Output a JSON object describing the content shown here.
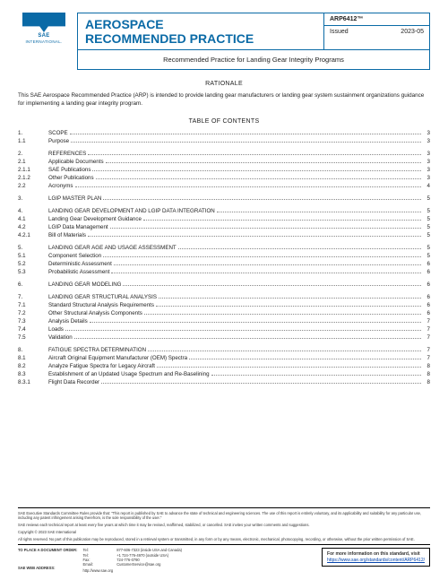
{
  "brand": {
    "name": "SAE",
    "sub": "INTERNATIONAL."
  },
  "header": {
    "title_line1": "AEROSPACE",
    "title_line2": "RECOMMENDED PRACTICE",
    "doc_number": "ARP6412™",
    "issued_label": "Issued",
    "issued_date": "2023-05",
    "subtitle": "Recommended Practice for Landing Gear Integrity Programs"
  },
  "rationale_h": "RATIONALE",
  "rationale_body": "This SAE Aerospace Recommended Practice (ARP) is intended to provide landing gear manufacturers or landing gear system sustainment organizations guidance for implementing a landing gear integrity program.",
  "toc_h": "TABLE OF CONTENTS",
  "toc": [
    {
      "n": "1.",
      "t": "SCOPE",
      "p": "3"
    },
    {
      "n": "1.1",
      "t": "Purpose",
      "p": "3"
    },
    {
      "gap": true
    },
    {
      "n": "2.",
      "t": "REFERENCES",
      "p": "3"
    },
    {
      "n": "2.1",
      "t": "Applicable Documents",
      "p": "3"
    },
    {
      "n": "2.1.1",
      "t": "SAE Publications",
      "p": "3"
    },
    {
      "n": "2.1.2",
      "t": "Other Publications",
      "p": "3"
    },
    {
      "n": "2.2",
      "t": "Acronyms",
      "p": "4"
    },
    {
      "gap": true
    },
    {
      "n": "3.",
      "t": "LGIP MASTER PLAN",
      "p": "5"
    },
    {
      "gap": true
    },
    {
      "n": "4.",
      "t": "LANDING GEAR DEVELOPMENT AND LGIP DATA INTEGRATION",
      "p": "5"
    },
    {
      "n": "4.1",
      "t": "Landing Gear Development Guidance",
      "p": "5"
    },
    {
      "n": "4.2",
      "t": "LGIP Data Management",
      "p": "5"
    },
    {
      "n": "4.2.1",
      "t": "Bill of Materials",
      "p": "5"
    },
    {
      "gap": true
    },
    {
      "n": "5.",
      "t": "LANDING GEAR AGE AND USAGE ASSESSMENT",
      "p": "5"
    },
    {
      "n": "5.1",
      "t": "Component Selection",
      "p": "5"
    },
    {
      "n": "5.2",
      "t": "Deterministic Assessment",
      "p": "6"
    },
    {
      "n": "5.3",
      "t": "Probabilistic Assessment",
      "p": "6"
    },
    {
      "gap": true
    },
    {
      "n": "6.",
      "t": "LANDING GEAR MODELING",
      "p": "6"
    },
    {
      "gap": true
    },
    {
      "n": "7.",
      "t": "LANDING GEAR STRUCTURAL ANALYSIS",
      "p": "6"
    },
    {
      "n": "7.1",
      "t": "Standard Structural Analysis Requirements",
      "p": "6"
    },
    {
      "n": "7.2",
      "t": "Other Structural Analysis Components",
      "p": "6"
    },
    {
      "n": "7.3",
      "t": "Analysis Details",
      "p": "7"
    },
    {
      "n": "7.4",
      "t": "Loads",
      "p": "7"
    },
    {
      "n": "7.5",
      "t": "Validation",
      "p": "7"
    },
    {
      "gap": true
    },
    {
      "n": "8.",
      "t": "FATIGUE SPECTRA DETERMINATION",
      "p": "7"
    },
    {
      "n": "8.1",
      "t": "Aircraft Original Equipment Manufacturer (OEM) Spectra",
      "p": "7"
    },
    {
      "n": "8.2",
      "t": "Analyze Fatigue Spectra for Legacy Aircraft",
      "p": "8"
    },
    {
      "n": "8.3",
      "t": "Establishment of an Updated Usage Spectrum and Re-Baselining",
      "p": "8"
    },
    {
      "n": "8.3.1",
      "t": "Flight Data Recorder",
      "p": "8"
    }
  ],
  "footer": {
    "p1": "SAE Executive Standards Committee Rules provide that: \"This report is published by SAE to advance the state of technical and engineering sciences. The use of this report is entirely voluntary, and its applicability and suitability for any particular use, including any patent infringement arising therefrom, is the sole responsibility of the user.\"",
    "p2": "SAE reviews each technical report at least every five years at which time it may be revised, reaffirmed, stabilized, or cancelled. SAE invites your written comments and suggestions.",
    "p3": "Copyright © 2023 SAE International",
    "p4": "All rights reserved. No part of this publication may be reproduced, stored in a retrieval system or transmitted, in any form or by any means, electronic, mechanical, photocopying, recording, or otherwise, without the prior written permission of SAE.",
    "order_label": "TO PLACE A DOCUMENT ORDER:",
    "tel_l": "Tel:",
    "tel_v": "877-606-7323 (inside USA and Canada)",
    "tel2_l": "Tel:",
    "tel2_v": "+1 724-776-4970 (outside USA)",
    "fax_l": "Fax:",
    "fax_v": "724-776-0790",
    "email_l": "Email:",
    "email_v": "CustomerService@sae.org",
    "web_label": "SAE WEB ADDRESS:",
    "web_v": "http://www.sae.org",
    "info1": "For more information on this standard, visit",
    "info_link": "https://www.sae.org/standards/content/ARP6412/"
  }
}
